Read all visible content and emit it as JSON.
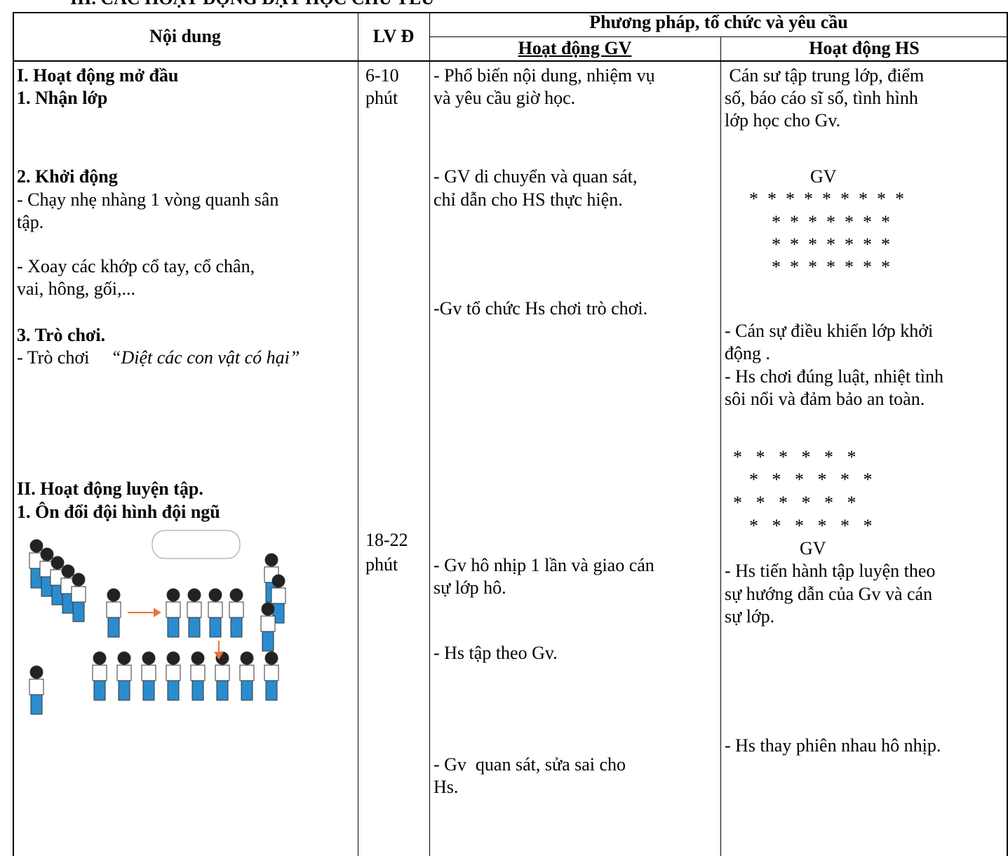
{
  "section_title": "III. CÁC HOẠT ĐỘNG DẠY HỌC CHỦ YẾU",
  "table": {
    "headers": {
      "content": "Nội dung",
      "time": "LV Đ",
      "method": "Phương pháp, tổ chức và yêu cầu",
      "teacher": "Hoạt động GV",
      "student": "Hoạt động HS"
    },
    "content": [
      "I. Hoạt động mở đầu",
      "1. Nhận lớp",
      "2. Khởi động",
      "- Chạy nhẹ nhàng 1 vòng quanh sân",
      "tập.",
      "- Xoay các khớp cổ tay, cổ chân,",
      "vai, hông, gối,...",
      "3. Trò chơi.",
      "- Trò chơi ",
      "“Diệt các con vật có hại”",
      "II. Hoạt động luyện tập.",
      "1. Ôn đổi đội hình đội ngũ"
    ],
    "time": [
      "6-10",
      "phút",
      "18-22",
      "phút"
    ],
    "teacher": [
      "- Phổ biến nội dung, nhiệm vụ",
      "và yêu cầu giờ học.",
      "- GV di chuyển và quan sát,",
      "chỉ dẫn cho HS thực hiện.",
      "-Gv tổ chức Hs chơi trò chơi.",
      "- Gv hô nhịp 1 lần và giao cán",
      "sự lớp hô.",
      "- Hs tập theo Gv.",
      "- Gv  quan sát, sửa sai cho",
      "Hs."
    ],
    "student": [
      " Cán sư tập trung lớp, điểm",
      "số, báo cáo sĩ số, tình hình",
      "lớp học cho Gv.",
      "GV",
      "*  *  *  *  *  *  *  *  *",
      "*  *  *  *  *  *  *",
      "*  *  *  *  *  *  *",
      "*  *  *  *  *  *  *",
      "- Cán sự điều khiển lớp khởi",
      "động .",
      "- Hs chơi đúng luật, nhiệt tình",
      "sôi nổi và đảm bảo an toàn.",
      "*   *   *   *   *   *",
      "*   *   *   *   *   *",
      "*   *   *   *   *   *",
      "*   *   *   *   *   *",
      "GV",
      "- Hs tiến hành tập luyện theo",
      "sự hướng dẫn của Gv và cán",
      "sự lớp.",
      "- Hs thay phiên nhau hô nhịp."
    ]
  }
}
